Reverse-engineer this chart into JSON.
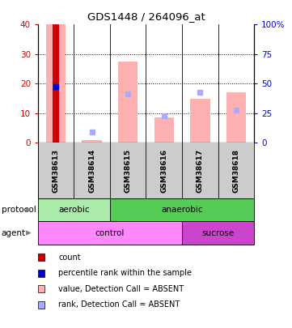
{
  "title": "GDS1448 / 264096_at",
  "samples": [
    "GSM38613",
    "GSM38614",
    "GSM38615",
    "GSM38616",
    "GSM38617",
    "GSM38618"
  ],
  "left_ylim": [
    0,
    40
  ],
  "right_ylim": [
    0,
    100
  ],
  "left_yticks": [
    0,
    10,
    20,
    30,
    40
  ],
  "right_yticks": [
    0,
    25,
    50,
    75,
    100
  ],
  "right_yticklabels": [
    "0",
    "25",
    "50",
    "75",
    "100%"
  ],
  "count_bar": {
    "sample_idx": 0,
    "value": 40,
    "color": "#cc0000"
  },
  "percentile_rank": {
    "sample_idx": 0,
    "value": 19,
    "color": "#0000cc"
  },
  "absent_value_bars": [
    {
      "sample_idx": 0,
      "value": 40,
      "color": "#ffb0b0"
    },
    {
      "sample_idx": 1,
      "value": 1.0,
      "color": "#ffb0b0"
    },
    {
      "sample_idx": 2,
      "value": 27.5,
      "color": "#ffb0b0"
    },
    {
      "sample_idx": 3,
      "value": 8.5,
      "color": "#ffb0b0"
    },
    {
      "sample_idx": 4,
      "value": 15,
      "color": "#ffb0b0"
    },
    {
      "sample_idx": 5,
      "value": 17,
      "color": "#ffb0b0"
    }
  ],
  "absent_rank_markers": [
    {
      "sample_idx": 1,
      "value": 3.5,
      "color": "#aaaaff"
    },
    {
      "sample_idx": 2,
      "value": 16.5,
      "color": "#aaaaff"
    },
    {
      "sample_idx": 3,
      "value": 9,
      "color": "#aaaaff"
    },
    {
      "sample_idx": 4,
      "value": 17,
      "color": "#aaaaff"
    },
    {
      "sample_idx": 5,
      "value": 11,
      "color": "#aaaaff"
    }
  ],
  "protocol_regions": [
    {
      "start": 0,
      "end": 2,
      "label": "aerobic",
      "color": "#aaeaaa"
    },
    {
      "start": 2,
      "end": 6,
      "label": "anaerobic",
      "color": "#55cc55"
    }
  ],
  "agent_regions": [
    {
      "start": 0,
      "end": 4,
      "label": "control",
      "color": "#ff88ff"
    },
    {
      "start": 4,
      "end": 6,
      "label": "sucrose",
      "color": "#cc44cc"
    }
  ],
  "protocol_label": "protocol",
  "agent_label": "agent",
  "legend_items": [
    {
      "label": "count",
      "color": "#cc0000"
    },
    {
      "label": "percentile rank within the sample",
      "color": "#0000cc"
    },
    {
      "label": "value, Detection Call = ABSENT",
      "color": "#ffb0b0"
    },
    {
      "label": "rank, Detection Call = ABSENT",
      "color": "#aaaaff"
    }
  ],
  "sample_box_color": "#cccccc",
  "tick_label_color_left": "#cc0000",
  "tick_label_color_right": "#0000cc"
}
